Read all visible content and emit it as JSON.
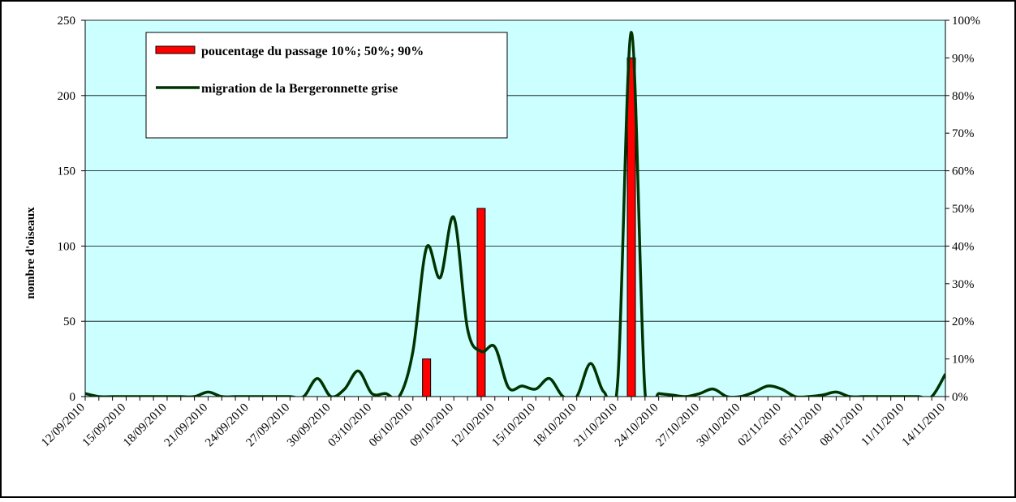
{
  "chart_data": {
    "type": "combo",
    "y_label": "nombre d'oiseaux",
    "categories": [
      "12/09/2010",
      null,
      null,
      "15/09/2010",
      null,
      null,
      "18/09/2010",
      null,
      null,
      "21/09/2010",
      null,
      null,
      "24/09/2010",
      null,
      null,
      "27/09/2010",
      null,
      null,
      "30/09/2010",
      null,
      null,
      "03/10/2010",
      null,
      null,
      "06/10/2010",
      null,
      null,
      "09/10/2010",
      null,
      null,
      "12/10/2010",
      null,
      null,
      "15/10/2010",
      null,
      null,
      "18/10/2010",
      null,
      null,
      "21/10/2010",
      null,
      null,
      "24/10/2010",
      null,
      null,
      "27/10/2010",
      null,
      null,
      "30/10/2010",
      null,
      null,
      "02/11/2010",
      null,
      null,
      "05/11/2010",
      null,
      null,
      "08/11/2010",
      null,
      null,
      "11/11/2010",
      null,
      null,
      "14/11/2010"
    ],
    "series": [
      {
        "name": "poucentage du passage 10%; 50%; 90%",
        "type": "bar",
        "axis": "y2",
        "color": "#ff0000",
        "values": [
          null,
          null,
          null,
          null,
          null,
          null,
          null,
          null,
          null,
          null,
          null,
          null,
          null,
          null,
          null,
          null,
          null,
          null,
          null,
          null,
          null,
          null,
          null,
          null,
          null,
          10,
          null,
          null,
          null,
          50,
          null,
          null,
          null,
          null,
          null,
          null,
          null,
          null,
          null,
          null,
          90,
          null,
          null,
          null,
          null,
          null,
          null,
          null,
          null,
          null,
          null,
          null,
          null,
          null,
          null,
          null,
          null,
          null,
          null,
          null,
          null,
          null,
          null,
          null
        ]
      },
      {
        "name": "migration de la Bergeronnette grise",
        "type": "line",
        "color": "#003300",
        "values": [
          2,
          0,
          0,
          0,
          0,
          0,
          0,
          0,
          0,
          3,
          0,
          0,
          0,
          0,
          0,
          0,
          0,
          12,
          0,
          5,
          17,
          2,
          2,
          0,
          30,
          99,
          79,
          119,
          45,
          30,
          33,
          6,
          7,
          5,
          12,
          0,
          0,
          22,
          3,
          10,
          242,
          3,
          2,
          1,
          0,
          2,
          5,
          0,
          0,
          3,
          7,
          5,
          0,
          0,
          1,
          3,
          0,
          0,
          0,
          0,
          0,
          0,
          0,
          15
        ]
      }
    ],
    "ylim": [
      0,
      250
    ],
    "yticks": [
      0,
      50,
      100,
      150,
      200,
      250
    ],
    "y2lim": [
      0,
      100
    ],
    "y2ticks": [
      {
        "value": 0,
        "label": "0%"
      },
      {
        "value": 10,
        "label": "10%"
      },
      {
        "value": 20,
        "label": "20%"
      },
      {
        "value": 30,
        "label": "30%"
      },
      {
        "value": 40,
        "label": "40%"
      },
      {
        "value": 50,
        "label": "50%"
      },
      {
        "value": 60,
        "label": "60%"
      },
      {
        "value": 70,
        "label": "70%"
      },
      {
        "value": 80,
        "label": "80%"
      },
      {
        "value": 90,
        "label": "90%"
      },
      {
        "value": 100,
        "label": "100%"
      }
    ],
    "grid": true,
    "legend": "upper left",
    "background": "#ccffff"
  }
}
